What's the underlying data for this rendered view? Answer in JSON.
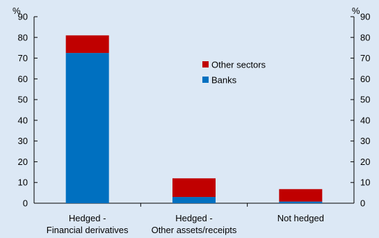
{
  "chart_data": {
    "type": "bar",
    "stacked": true,
    "categories": [
      [
        "Hedged -",
        "Financial derivatives"
      ],
      [
        "Hedged -",
        "Other assets/receipts"
      ],
      [
        "Not hedged"
      ]
    ],
    "series": [
      {
        "name": "Banks",
        "color": "#0070c0",
        "values": [
          72.5,
          3,
          0.8
        ]
      },
      {
        "name": "Other sectors",
        "color": "#c00000",
        "values": [
          8.5,
          9,
          6
        ]
      }
    ],
    "ylim": [
      0,
      90
    ],
    "yticks": [
      0,
      10,
      20,
      30,
      40,
      50,
      60,
      70,
      80,
      90
    ],
    "y_unit_left": "%",
    "y_unit_right": "%",
    "legend_position": "upper-center",
    "grid": false
  }
}
